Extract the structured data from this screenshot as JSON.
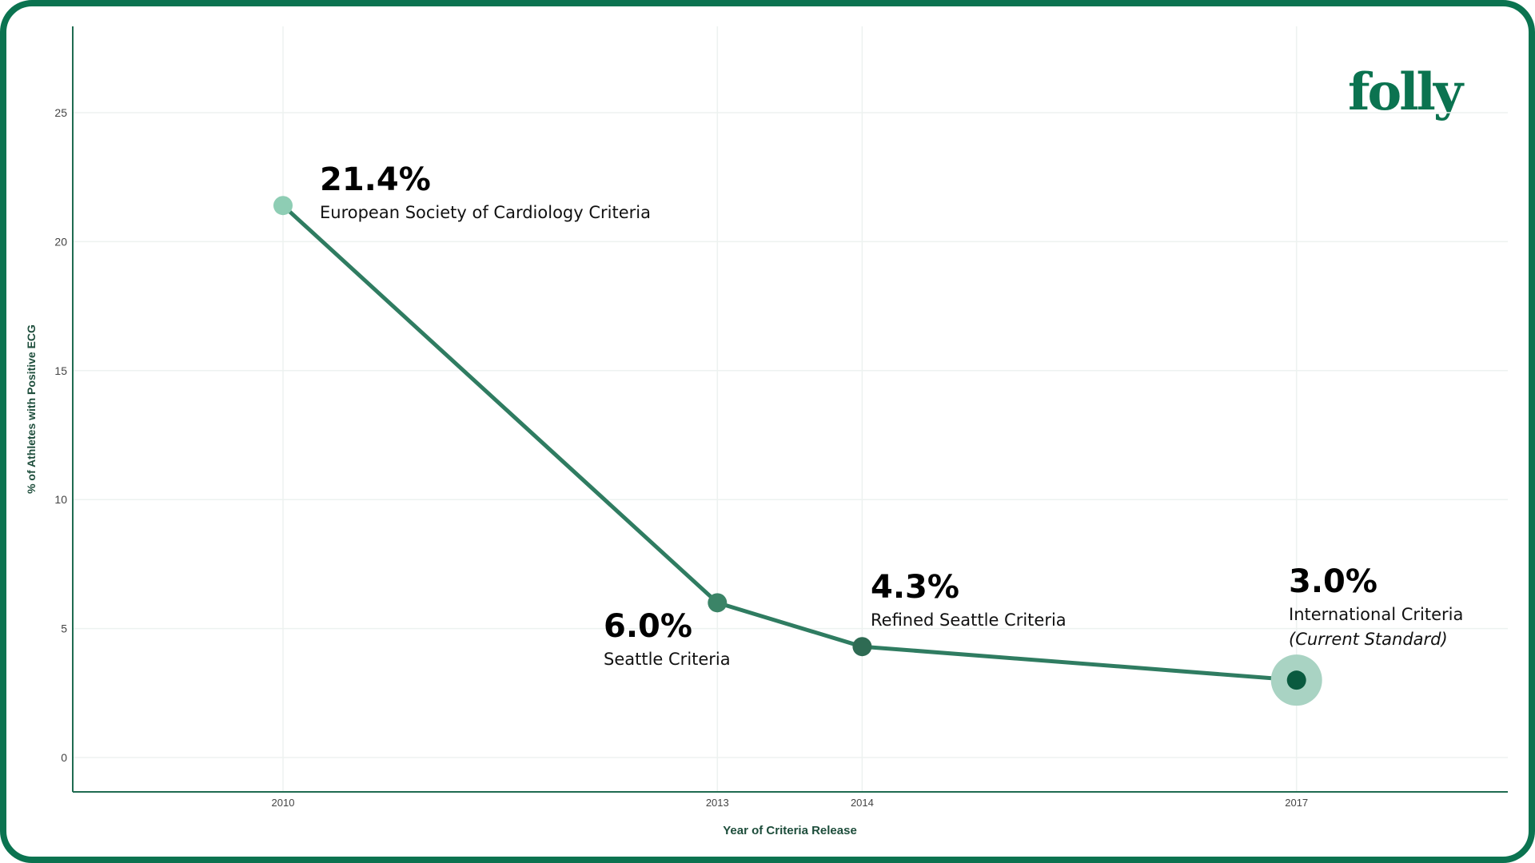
{
  "brand": "folly",
  "colors": {
    "line": "#2f7c61",
    "axis": "#1f6b50",
    "grid": "#edf2f0",
    "halo": "#a9d3c3"
  },
  "chart_data": {
    "type": "line",
    "title": "",
    "xlabel": "Year of Criteria Release",
    "ylabel": "% of Athletes with Positive ECG",
    "xlim": [
      2008.8,
      2018.2
    ],
    "ylim": [
      -1.3,
      28.3
    ],
    "xticks": [
      2010,
      2013,
      2014,
      2017
    ],
    "yticks": [
      0,
      5,
      10,
      15,
      20,
      25
    ],
    "grid": true,
    "points": [
      {
        "x": 2010,
        "y": 21.4,
        "value_label": "21.4%",
        "name": "European Society of Cardiology Criteria",
        "note": "",
        "color": "#8ecdb4"
      },
      {
        "x": 2013,
        "y": 6.0,
        "value_label": "6.0%",
        "name": "Seattle Criteria",
        "note": "",
        "color": "#3b8467"
      },
      {
        "x": 2014,
        "y": 4.3,
        "value_label": "4.3%",
        "name": "Refined Seattle Criteria",
        "note": "",
        "color": "#2e6b53"
      },
      {
        "x": 2017,
        "y": 3.0,
        "value_label": "3.0%",
        "name": "International Criteria",
        "note": "(Current Standard)",
        "color": "#0a5a3f"
      }
    ]
  }
}
